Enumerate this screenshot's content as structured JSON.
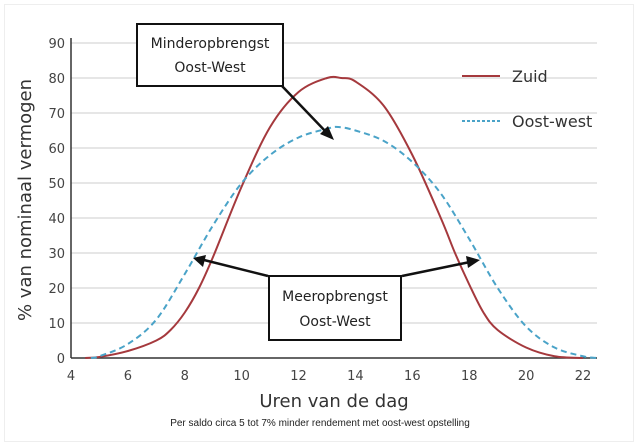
{
  "chart_data": {
    "type": "line",
    "xlabel": "Uren van de dag",
    "ylabel": "% van nominaal vermogen",
    "xlim": [
      4,
      22.5
    ],
    "ylim": [
      0,
      90
    ],
    "xticks": [
      4,
      6,
      8,
      10,
      12,
      14,
      16,
      18,
      20,
      22
    ],
    "yticks": [
      0,
      10,
      20,
      30,
      40,
      50,
      60,
      70,
      80,
      90
    ],
    "grid": "horizontal",
    "legend_position": "top-right",
    "series": [
      {
        "name": "Zuid",
        "color": "#a5393d",
        "style": "solid",
        "x": [
          4.5,
          5,
          6,
          7,
          7.5,
          8,
          8.5,
          9,
          10,
          11,
          12,
          13,
          13.5,
          14,
          15,
          16,
          17,
          17.5,
          18,
          18.5,
          19,
          20,
          21,
          22
        ],
        "y": [
          0,
          0.3,
          2,
          5,
          8,
          13,
          20,
          29,
          49,
          66,
          76,
          80,
          80,
          79,
          72,
          58,
          40,
          30,
          21,
          13,
          8,
          3,
          0.5,
          0
        ]
      },
      {
        "name": "Oost-west",
        "color": "#4aa3c8",
        "style": "dashed",
        "x": [
          4.7,
          5,
          6,
          7,
          8,
          9,
          10,
          11,
          12,
          13,
          13.4,
          14,
          15,
          16,
          17,
          18,
          19,
          20,
          21,
          22,
          22.5
        ],
        "y": [
          0,
          0.5,
          4,
          11,
          24,
          38,
          50,
          58,
          63,
          65.5,
          66,
          65,
          62,
          56,
          47,
          34,
          20,
          9,
          3,
          0.5,
          0
        ]
      }
    ],
    "annotations": [
      {
        "lines": [
          "Minderopbrengst",
          "Oost-West"
        ]
      },
      {
        "lines": [
          "Meeropbrengst",
          "Oost-West"
        ]
      }
    ]
  },
  "caption": "Per saldo circa 5 tot 7% minder rendement met oost-west opstelling"
}
